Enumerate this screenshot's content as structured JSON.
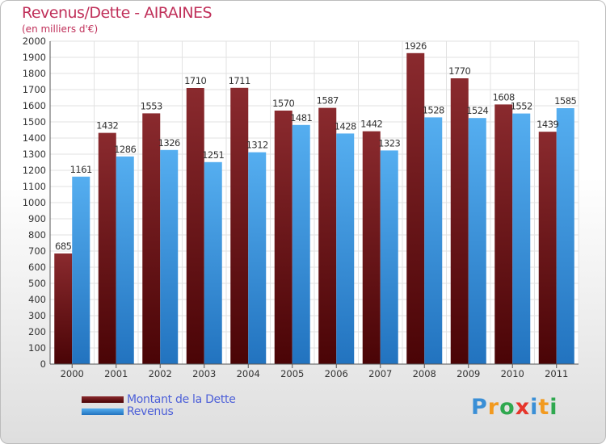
{
  "title": "Revenus/Dette - AIRAINES",
  "subtitle": "(en milliers d'€)",
  "logo_letters": [
    "P",
    "r",
    "o",
    "x",
    "i",
    "t",
    "i"
  ],
  "logo_colors": [
    "#3a8fd6",
    "#f29a1f",
    "#2fa84f",
    "#e6352b",
    "#3a8fd6",
    "#f29a1f",
    "#2fa84f"
  ],
  "chart_data": {
    "type": "bar",
    "categories": [
      "2000",
      "2001",
      "2002",
      "2003",
      "2004",
      "2005",
      "2006",
      "2007",
      "2008",
      "2009",
      "2010",
      "2011"
    ],
    "series": [
      {
        "name": "Montant de la Dette",
        "color": "#7a1a1e",
        "values": [
          685,
          1432,
          1553,
          1710,
          1711,
          1570,
          1587,
          1442,
          1926,
          1770,
          1608,
          1439
        ]
      },
      {
        "name": "Revenus",
        "color": "#3d97e0",
        "values": [
          1161,
          1286,
          1326,
          1251,
          1312,
          1481,
          1428,
          1323,
          1528,
          1524,
          1552,
          1585
        ]
      }
    ],
    "ylim": [
      0,
      2000
    ],
    "ytick_step": 100,
    "grid": true,
    "legend_position": "bottom-left"
  }
}
